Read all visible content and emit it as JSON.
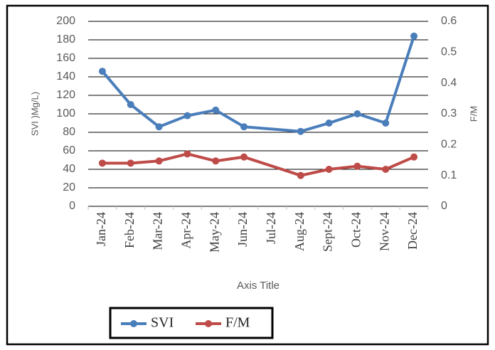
{
  "chart_data": {
    "type": "line",
    "categories": [
      "Jan-24",
      "Feb-24",
      "Mar-24",
      "Apr-24",
      "May-24",
      "Jun-24",
      "Jul-24",
      "Aug-24",
      "Sept-24",
      "Oct-24",
      "Nov-24",
      "Dec-24"
    ],
    "series": [
      {
        "name": "SVI",
        "color": "#4a7ebb",
        "values": [
          146,
          110,
          86,
          98,
          104,
          86,
          null,
          81,
          90,
          100,
          90,
          184
        ]
      },
      {
        "name": "F/M",
        "color": "#be4b48",
        "axis": "y2",
        "values": [
          0.14,
          0.14,
          0.147,
          0.17,
          0.147,
          0.16,
          null,
          0.1,
          0.12,
          0.13,
          0.12,
          0.16
        ]
      }
    ],
    "xlabel": "Axis Title",
    "ylabel": "SVI )Mg/L)",
    "y2label": "F/M",
    "ylim": [
      0,
      200
    ],
    "yticks": [
      0,
      20,
      40,
      60,
      80,
      100,
      120,
      140,
      160,
      180,
      200
    ],
    "y2lim": [
      0,
      0.6
    ],
    "y2ticks": [
      0,
      0.1,
      0.2,
      0.3,
      0.4,
      0.5,
      0.6
    ],
    "grid": true,
    "legend": "bottom"
  }
}
